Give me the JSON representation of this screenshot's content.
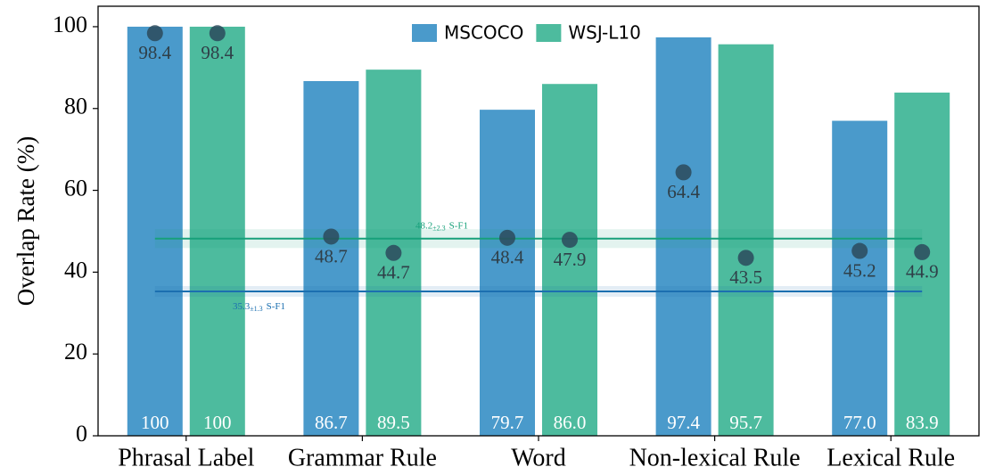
{
  "chart_data": {
    "type": "bar",
    "ylabel": "Overlap Rate (%)",
    "categories": [
      "Phrasal Label",
      "Grammar Rule",
      "Word",
      "Non-lexical Rule",
      "Lexical Rule"
    ],
    "series": [
      {
        "name": "MSCOCO",
        "color": "#4a9acb",
        "values": [
          100,
          86.7,
          79.7,
          97.4,
          77.0
        ],
        "value_labels": [
          "100",
          "86.7",
          "79.7",
          "97.4",
          "77.0"
        ],
        "points": [
          98.4,
          48.7,
          48.4,
          64.4,
          45.2
        ]
      },
      {
        "name": "WSJ-L10",
        "color": "#4dbb9e",
        "values": [
          100,
          89.5,
          86.0,
          95.7,
          83.9
        ],
        "value_labels": [
          "100",
          "89.5",
          "86.0",
          "95.7",
          "83.9"
        ],
        "points": [
          98.4,
          44.7,
          47.9,
          43.5,
          44.9
        ]
      }
    ],
    "ylim": [
      0,
      105
    ],
    "yticks": [
      0,
      20,
      40,
      60,
      80,
      100
    ],
    "legend": "upper center",
    "reference_lines": [
      {
        "value": 48.2,
        "error": 2.3,
        "error_label": "±2.3",
        "label": "S-F1",
        "color": "#17a07a"
      },
      {
        "value": 35.3,
        "error": 1.3,
        "error_label": "±1.3",
        "label": "S-F1",
        "color": "#1b6fb0"
      }
    ]
  }
}
